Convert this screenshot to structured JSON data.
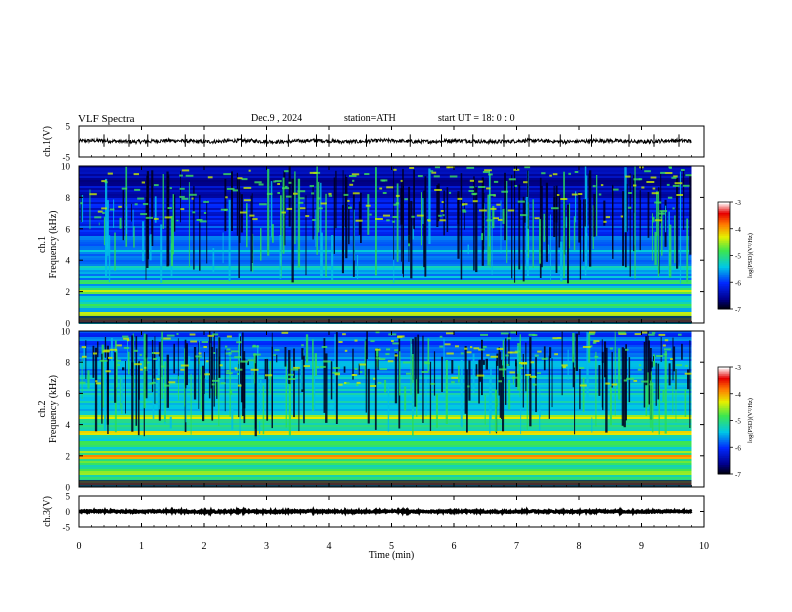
{
  "header": {
    "title": "VLF  Spectra",
    "date": "Dec.9  , 2024",
    "station": "station=ATH",
    "start": "start  UT  =    18: 0   : 0"
  },
  "chart_data": [
    {
      "type": "line",
      "panel": "ch1-waveform",
      "ylabel": "ch.1(V)",
      "ylim": [
        -5,
        5
      ],
      "y_ticks": [
        "5",
        "-5"
      ],
      "xlim": [
        0,
        10
      ],
      "x_end": 9.8,
      "baseline": 0.1,
      "noise_amplitude": 0.6,
      "spikes": [
        0.4,
        0.8,
        1.1,
        1.7,
        2.0,
        2.6,
        3.0,
        3.35,
        3.8,
        4.0,
        4.6,
        5.3,
        5.8,
        6.3,
        6.8,
        7.2,
        7.7,
        8.2,
        8.8,
        9.2,
        9.6
      ]
    },
    {
      "type": "heatmap",
      "panel": "ch1-spectrogram",
      "ylabel": "ch.1\nFrequency  (kHz)",
      "ylim": [
        0,
        10
      ],
      "y_ticks": [
        "0",
        "2",
        "4",
        "6",
        "8",
        "10"
      ],
      "xlim": [
        0,
        10
      ],
      "x_end": 9.8,
      "color_scale": {
        "label": "log(PSD)(V²/Hz)",
        "ticks": [
          "-3",
          "-4",
          "-5",
          "-6",
          "-7"
        ],
        "range": [
          -7,
          -3
        ]
      },
      "background_level": -5.8,
      "hiss_top_kHz": 5.0,
      "bands": [
        {
          "freq_kHz": 0.2,
          "level": -4.2
        },
        {
          "freq_kHz": 0.6,
          "level": -4.6
        },
        {
          "freq_kHz": 1.1,
          "level": -5.0
        },
        {
          "freq_kHz": 2.0,
          "level": -4.5
        },
        {
          "freq_kHz": 2.2,
          "level": -4.8
        },
        {
          "freq_kHz": 2.7,
          "level": -5.1
        },
        {
          "freq_kHz": 3.6,
          "level": -5.2
        },
        {
          "freq_kHz": 4.6,
          "level": -5.4
        }
      ],
      "sferic_density": 0.35
    },
    {
      "type": "heatmap",
      "panel": "ch2-spectrogram",
      "ylabel": "ch.2\nFrequency  (kHz)",
      "ylim": [
        0,
        10
      ],
      "y_ticks": [
        "0",
        "2",
        "4",
        "6",
        "8",
        "10"
      ],
      "xlim": [
        0,
        10
      ],
      "x_end": 9.8,
      "color_scale": {
        "label": "log(PSD)(V²/Hz)",
        "ticks": [
          "-3",
          "-4",
          "-5",
          "-6",
          "-7"
        ],
        "range": [
          -7,
          -3
        ]
      },
      "background_level": -5.4,
      "hiss_top_kHz": 6.5,
      "bands": [
        {
          "freq_kHz": 0.3,
          "level": -4.1
        },
        {
          "freq_kHz": 1.0,
          "level": -4.6
        },
        {
          "freq_kHz": 1.6,
          "level": -4.7
        },
        {
          "freq_kHz": 2.0,
          "level": -4.0
        },
        {
          "freq_kHz": 2.3,
          "level": -4.5
        },
        {
          "freq_kHz": 2.9,
          "level": -4.9
        },
        {
          "freq_kHz": 3.5,
          "level": -4.4
        },
        {
          "freq_kHz": 4.6,
          "level": -4.3
        }
      ],
      "sferic_density": 0.5
    },
    {
      "type": "line",
      "panel": "ch3-waveform",
      "ylabel": "ch.3(V)",
      "ylim": [
        -5,
        5
      ],
      "y_ticks": [
        "5",
        "0",
        "-5"
      ],
      "xlim": [
        0,
        10
      ],
      "x_end": 9.8,
      "baseline": 0.0,
      "noise_amplitude": 0.25,
      "xlabel": "Time  (min)",
      "x_ticks": [
        "0",
        "1",
        "2",
        "3",
        "4",
        "5",
        "6",
        "7",
        "8",
        "9",
        "10"
      ]
    }
  ]
}
